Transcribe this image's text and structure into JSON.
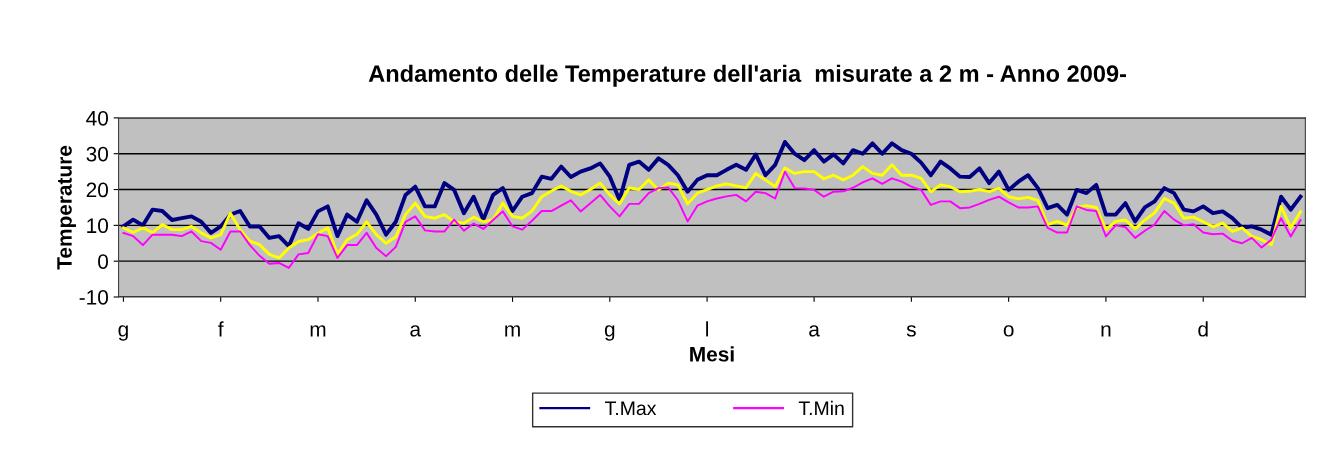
{
  "chart_data": {
    "type": "line",
    "title": "Andamento delle Temperature dell'aria  misurate a 2 m - Anno 2009-",
    "xlabel": "Mesi",
    "ylabel": "Temperature",
    "categories": [
      "g",
      null,
      null,
      null,
      null,
      null,
      null,
      null,
      null,
      null,
      "f",
      null,
      null,
      null,
      null,
      null,
      null,
      null,
      null,
      null,
      "m",
      null,
      null,
      null,
      null,
      null,
      null,
      null,
      null,
      null,
      "a",
      null,
      null,
      null,
      null,
      null,
      null,
      null,
      null,
      null,
      "m",
      null,
      null,
      null,
      null,
      null,
      null,
      null,
      null,
      null,
      "g",
      null,
      null,
      null,
      null,
      null,
      null,
      null,
      null,
      null,
      "l",
      null,
      null,
      null,
      null,
      null,
      null,
      null,
      null,
      null,
      null,
      "a",
      null,
      null,
      null,
      null,
      null,
      null,
      null,
      null,
      null,
      "s",
      null,
      null,
      null,
      null,
      null,
      null,
      null,
      null,
      null,
      "o",
      null,
      null,
      null,
      null,
      null,
      null,
      null,
      null,
      null,
      "n",
      null,
      null,
      null,
      null,
      null,
      null,
      null,
      null,
      null,
      "d",
      null,
      null,
      null,
      null,
      null,
      null,
      null,
      null,
      null,
      null
    ],
    "ylim": [
      -10,
      40
    ],
    "yticks": [
      -10,
      0,
      10,
      20,
      30,
      40
    ],
    "grid": "y",
    "legend": "bottom",
    "marker": "none",
    "line_style": "solid",
    "series": [
      {
        "name": "T.Max",
        "color": "#000080",
        "values": [
          9.7,
          11.6,
          10,
          14.4,
          14,
          11.5,
          12,
          12.5,
          11,
          7.9,
          9.7,
          13,
          14,
          9.7,
          9.7,
          6.5,
          7,
          4.2,
          10.6,
          9,
          13.9,
          15.3,
          7,
          13,
          11,
          17,
          13,
          7.4,
          11,
          18.5,
          20.8,
          15.3,
          15.3,
          21.8,
          19.9,
          13.4,
          18,
          11.6,
          18.5,
          20.4,
          14,
          18,
          19,
          23.6,
          23,
          26.4,
          23.5,
          25,
          25.9,
          27.3,
          23.6,
          17.1,
          26.9,
          27.8,
          25.5,
          28.7,
          26.9,
          24,
          19.4,
          22.7,
          24,
          24,
          25.5,
          26.9,
          25.5,
          29.8,
          24,
          26.9,
          33.3,
          30,
          28.2,
          31,
          27.8,
          29.8,
          27.3,
          31,
          30,
          32.9,
          30,
          32.9,
          31,
          30,
          27.5,
          24,
          27.8,
          25.9,
          23.6,
          23.5,
          25.9,
          21.8,
          25,
          19.9,
          22.2,
          24,
          20.4,
          14.8,
          15.7,
          13,
          19.9,
          19,
          21.3,
          13,
          13,
          16.2,
          11.1,
          15,
          16.7,
          20.4,
          19,
          14.4,
          13.9,
          15.3,
          13.4,
          13.9,
          12,
          9.3,
          9.7,
          8.8,
          7.4,
          18,
          14.4,
          18
        ]
      },
      {
        "color": "#ffff00",
        "values": [
          9.3,
          8,
          9.3,
          8,
          10.2,
          8.8,
          8.8,
          9.7,
          7.9,
          6.5,
          7.4,
          13.4,
          8.8,
          5.6,
          4.6,
          1.9,
          0.9,
          3.7,
          5.5,
          6,
          7.8,
          9.3,
          1.9,
          6,
          7.5,
          11,
          7.4,
          5,
          6.8,
          13,
          16.2,
          12.5,
          12,
          13,
          11,
          10.6,
          12.3,
          11,
          11.6,
          16.2,
          12.5,
          12,
          14,
          18,
          19.6,
          21,
          19.5,
          18.5,
          20,
          21.8,
          18.5,
          16,
          20.5,
          20,
          22.7,
          19.9,
          21.8,
          21.3,
          16,
          19,
          20,
          21,
          21.6,
          21,
          20.5,
          24.5,
          22.7,
          20.8,
          26,
          24.5,
          25,
          25,
          23,
          24,
          22.7,
          24,
          26.4,
          24.5,
          24,
          26.9,
          24,
          24,
          23.1,
          19.4,
          21.3,
          20.8,
          19.4,
          19.5,
          20,
          19.4,
          20.3,
          18,
          17.4,
          17.8,
          17,
          10.2,
          11.1,
          10,
          15,
          15.5,
          15,
          8.8,
          11.1,
          11.5,
          9,
          11.5,
          13.5,
          17.5,
          16.2,
          12,
          12.3,
          11,
          9.6,
          10.6,
          8.3,
          9.3,
          6.9,
          6,
          4.6,
          15.3,
          9.3,
          13.8
        ]
      },
      {
        "name": "T.Min",
        "color": "#ff00ff",
        "values": [
          7.9,
          7,
          4.5,
          7.4,
          7.4,
          7.4,
          7,
          8.3,
          5.6,
          5.1,
          3.2,
          8.3,
          8.3,
          4.5,
          1.5,
          -0.7,
          -0.5,
          -1.9,
          1.9,
          2.3,
          7.5,
          7,
          0.9,
          4.5,
          4.5,
          7.9,
          3.7,
          1.4,
          4,
          11,
          12.5,
          8.6,
          8.3,
          8.3,
          11.6,
          8.5,
          10.5,
          9,
          11.5,
          13.9,
          9.7,
          8.8,
          11.3,
          14,
          14,
          15.5,
          17,
          13.9,
          16.2,
          18.5,
          15.3,
          12.5,
          16,
          16,
          19,
          20.4,
          20.6,
          17,
          11.1,
          15.5,
          16.7,
          17.5,
          18.1,
          18.5,
          16.7,
          19.4,
          19,
          17.5,
          25,
          20.4,
          20.3,
          19.9,
          18,
          19.4,
          19.5,
          20.5,
          22,
          23.1,
          21.6,
          23.1,
          22.2,
          20.8,
          19.9,
          15.7,
          16.7,
          16.7,
          14.8,
          15,
          16,
          17.1,
          18,
          16.4,
          15,
          15,
          15.3,
          9.3,
          8,
          8,
          15.3,
          14.3,
          14,
          6.9,
          10,
          9.5,
          6.5,
          8.5,
          10.2,
          14,
          11.6,
          10,
          10.3,
          8,
          7.5,
          7.7,
          5.7,
          5,
          6.5,
          3.8,
          6,
          12,
          6.9,
          11.5
        ]
      }
    ]
  }
}
